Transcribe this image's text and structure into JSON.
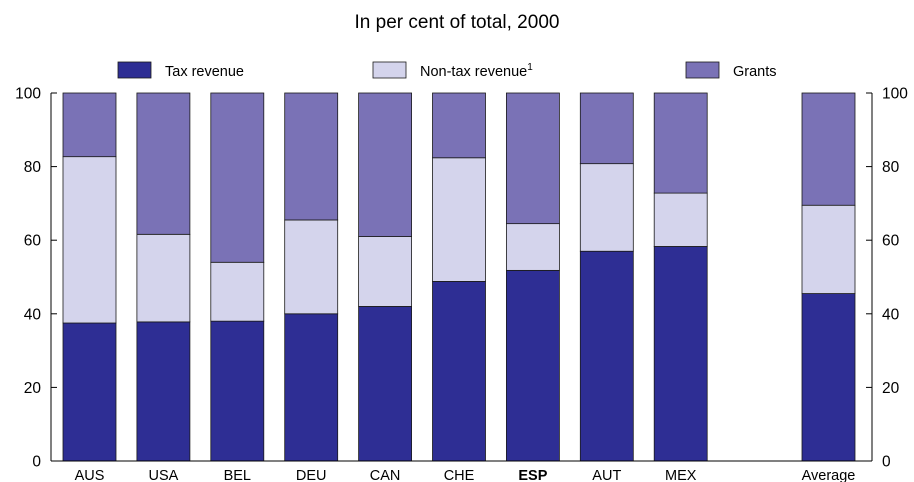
{
  "chart_data": {
    "type": "bar",
    "stacked": true,
    "title": "In per cent of total, 2000",
    "xlabel": "",
    "ylabel": "",
    "ylim": [
      0,
      100
    ],
    "yticks": [
      0,
      20,
      40,
      60,
      80,
      100
    ],
    "grid": false,
    "legend_position": "top",
    "categories": [
      "AUS",
      "USA",
      "BEL",
      "DEU",
      "CAN",
      "CHE",
      "ESP",
      "AUT",
      "MEX",
      "",
      "Average"
    ],
    "highlighted_category": "ESP",
    "series": [
      {
        "name": "Tax revenue",
        "color": "#2e2e94",
        "values": [
          37.5,
          37.8,
          38,
          40,
          42,
          48.8,
          51.8,
          57,
          58.3,
          null,
          45.5
        ]
      },
      {
        "name": "Non-tax revenue",
        "superscript": "1",
        "color": "#d4d4ec",
        "values": [
          45.2,
          23.8,
          16,
          25.5,
          19,
          33.6,
          12.7,
          23.8,
          14.5,
          null,
          24
        ]
      },
      {
        "name": "Grants",
        "color": "#7a72b6",
        "values": [
          17.3,
          38.4,
          46,
          34.5,
          39,
          17.6,
          35.5,
          19.2,
          27.2,
          null,
          30.5
        ]
      }
    ]
  }
}
